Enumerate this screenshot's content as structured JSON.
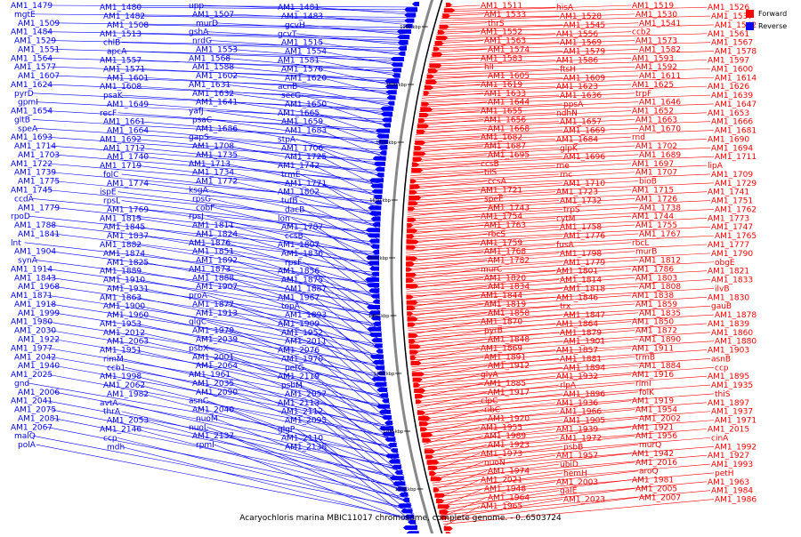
{
  "legend": {
    "forward": "Forward",
    "reverse": "Reverse",
    "forward_color": "#ff0000",
    "reverse_color": "#0000ff"
  },
  "caption": "Acaryochloris marina MBIC11017 chromosome, complete genome. - 0..6503724",
  "scale_ticks": [
    "1900 kbp",
    "1800 kbp",
    "1700 kbp",
    "1600 kbp",
    "1500 kbp",
    "1400 kbp",
    "1300 kbp",
    "1200 kbp",
    "1100 kbp"
  ],
  "reverse_labels": [
    "AM1_1479",
    "AM1_1480",
    "upp",
    "AM1_1481",
    "mgtE",
    "AM1_1482",
    "AM1_1507",
    "AM1_1483",
    "AM1_1509",
    "AM1_1508",
    "murD",
    "gcvH",
    "AM1_1484",
    "AM1_1513",
    "gshA",
    "gcvT",
    "AM1_1529",
    "chlB",
    "nrdG",
    "AM1_1515",
    "AM1_1551",
    "apcA",
    "AM1_1553",
    "AM1_1554",
    "AM1_1564",
    "AM1_1557",
    "AM1_1568",
    "AM1_1581",
    "AM1_1577",
    "AM1_1571",
    "AM1_1588",
    "AM1_1576",
    "AM1_1607",
    "AM1_1601",
    "AM1_1602",
    "AM1_1620",
    "AM1_1624",
    "AM1_1608",
    "AM1_1631",
    "acnB",
    "pyrD",
    "psaK",
    "AM1_1632",
    "secG",
    "gpmI",
    "AM1_1649",
    "AM1_1641",
    "AM1_1650",
    "AM1_1654",
    "recF",
    "yafJ",
    "AM1_1665",
    "gltB",
    "AM1_1661",
    "psaC",
    "AM1_1659",
    "speA",
    "AM1_1664",
    "AM1_1686",
    "AM1_1683",
    "AM1_1693",
    "AM1_1692",
    "gapS",
    "stpA",
    "AM1_1714",
    "AM1_1712",
    "AM1_1708",
    "AM1_1706",
    "AM1_1703",
    "AM1_1740",
    "AM1_1735",
    "AM1_1725",
    "AM1_1722",
    "AM1_1719",
    "AM1_1713",
    "AM1_1742",
    "AM1_1739",
    "folC",
    "AM1_1734",
    "trmE",
    "AM1_1775",
    "AM1_1774",
    "AM1_1772",
    "AM1_1771",
    "AM1_1745",
    "ispE",
    "ksgA",
    "AM1_1802",
    "ccdA",
    "rpsL",
    "rpsG",
    "tufB",
    "AM1_1779",
    "AM1_1769",
    "cobF",
    "dacB",
    "rpoD",
    "AM1_1815",
    "rpsJ",
    "lon",
    "AM1_1788",
    "AM1_1845",
    "AM1_1811",
    "AM1_1787",
    "AM1_1841",
    "AM1_1837",
    "AM1_1824",
    "ccsB",
    "lnt",
    "AM1_1882",
    "AM1_1876",
    "AM1_1807",
    "AM1_1904",
    "AM1_1874",
    "AM1_1851",
    "AM1_1836",
    "synA",
    "AM1_1825",
    "AM1_1892",
    "rpsF",
    "AM1_1914",
    "AM1_1889",
    "AM1_1873",
    "AM1_1856",
    "AM1_1843",
    "AM1_1910",
    "AM1_1888",
    "AM1_1875",
    "AM1_1968",
    "AM1_1931",
    "AM1_1907",
    "AM1_1887",
    "AM1_1871",
    "AM1_1863",
    "proA",
    "AM1_1967",
    "AM1_1918",
    "AM1_1900",
    "AM1_1877",
    "topA",
    "AM1_1999",
    "AM1_1960",
    "AM1_1913",
    "AM1_1893",
    "AM1_1980",
    "AM1_1953",
    "glgC",
    "AM1_1909",
    "AM1_2030",
    "AM1_2012",
    "AM1_1979",
    "AM1_1952",
    "AM1_1922",
    "AM1_2063",
    "AM1_2039",
    "AM1_2011",
    "AM1_1977",
    "AM1_1951",
    "psbX",
    "AM1_2076",
    "AM1_2042",
    "rimM",
    "AM1_2001",
    "AM1_1970",
    "AM1_1940",
    "ccb1",
    "AM1_2064",
    "petG",
    "AM1_2025",
    "AM1_1998",
    "AM1_1961",
    "AM1_2119",
    "gnd",
    "AM1_2062",
    "AM1_2035",
    "psbM",
    "AM1_2006",
    "AM1_1982",
    "AM1_2090",
    "AM1_2057",
    "AM1_2041",
    "avtA",
    "asnC",
    "AM1_2113",
    "AM1_2075",
    "thrA",
    "AM1_2040",
    "AM1_2112",
    "AM1_2081",
    "AM1_2053",
    "nuoM",
    "AM1_2095",
    "AM1_2067",
    "AM1_2146",
    "nuoL",
    "glgP",
    "malQ",
    "ccp",
    "AM1_2137",
    "AM1_2110",
    "polA",
    "mdh",
    "rpmI",
    "AM1_2138"
  ],
  "forward_labels": [
    "AM1_1511",
    "hisA",
    "AM1_1519",
    "AM1_1526",
    "AM1_1533",
    "AM1_1528",
    "AM1_1530",
    "AM1_1537",
    "thrS",
    "AM1_1545",
    "AM1_1541",
    "AM1_1542",
    "AM1_1552",
    "AM1_1556",
    "ccb2",
    "AM1_1561",
    "AM1_1563",
    "AM1_1569",
    "AM1_1573",
    "AM1_1567",
    "AM1_1574",
    "AM1_1579",
    "AM1_1582",
    "AM1_1578",
    "AM1_1583",
    "AM1_1586",
    "AM1_1593",
    "AM1_1597",
    "hlI",
    "ftsH",
    "AM1_1592",
    "AM1_1600",
    "AM1_1605",
    "AM1_1609",
    "AM1_1611",
    "AM1_1614",
    "AM1_1619",
    "AM1_1623",
    "AM1_1625",
    "AM1_1626",
    "AM1_1633",
    "AM1_1636",
    "trpF",
    "AM1_1639",
    "AM1_1644",
    "ppsA",
    "AM1_1646",
    "AM1_1647",
    "AM1_1655",
    "ndhN",
    "AM1_1652",
    "AM1_1653",
    "AM1_1656",
    "AM1_1657",
    "AM1_1663",
    "AM1_1666",
    "AM1_1668",
    "AM1_1669",
    "AM1_1670",
    "AM1_1681",
    "AM1_1682",
    "AM1_1684",
    "rnd",
    "AM1_1690",
    "AM1_1687",
    "glpK",
    "AM1_1702",
    "AM1_1694",
    "AM1_1695",
    "AM1_1696",
    "AM1_1689",
    "AM1_1711",
    "ccsB",
    "rne",
    "AM1_1697",
    "lipA",
    "tilS",
    "rnc",
    "AM1_1707",
    "AM1_1709",
    "ccsA",
    "AM1_1710",
    "bioB",
    "AM1_1729",
    "AM1_1721",
    "AM1_1723",
    "AM1_1715",
    "AM1_1741",
    "speE",
    "AM1_1732",
    "AM1_1726",
    "AM1_1751",
    "AM1_1743",
    "trpS",
    "AM1_1738",
    "AM1_1762",
    "AM1_1754",
    "cytM",
    "AM1_1744",
    "AM1_1773",
    "AM1_1763",
    "AM1_1758",
    "AM1_1755",
    "AM1_1747",
    "rbcS",
    "AM1_1776",
    "AM1_1767",
    "AM1_1765",
    "AM1_1759",
    "fusA",
    "rbcL",
    "AM1_1777",
    "AM1_1768",
    "AM1_1798",
    "murB",
    "AM1_1790",
    "AM1_1782",
    "AM1_1779",
    "AM1_1812",
    "obgE",
    "murC",
    "AM1_1801",
    "AM1_1786",
    "AM1_1821",
    "AM1_1820",
    "AM1_1814",
    "AM1_1803",
    "AM1_1833",
    "AM1_1834",
    "AM1_1818",
    "AM1_1808",
    "ilvB",
    "AM1_1844",
    "AM1_1846",
    "AM1_1838",
    "AM1_1830",
    "AM1_1819",
    "trx",
    "AM1_1859",
    "gauB",
    "AM1_1858",
    "AM1_1847",
    "AM1_1835",
    "AM1_1878",
    "AM1_1870",
    "AM1_1864",
    "AM1_1850",
    "AM1_1839",
    "pyrB",
    "AM1_1879",
    "AM1_1872",
    "AM1_1860",
    "AM1_1848",
    "AM1_1901",
    "AM1_1890",
    "AM1_1880",
    "AM1_1869",
    "AM1_1857",
    "AM1_1911",
    "AM1_1903",
    "AM1_1891",
    "AM1_1881",
    "trmB",
    "asnB",
    "AM1_1912",
    "AM1_1894",
    "AM1_1884",
    "ccp",
    "glyA",
    "AM1_1932",
    "AM1_1916",
    "AM1_1895",
    "AM1_1885",
    "rlpA",
    "rimI",
    "AM1_1935",
    "AM1_1917",
    "AM1_1896",
    "folK",
    "thiS",
    "clpC",
    "AM1_1936",
    "AM1_1919",
    "AM1_1897",
    "ribC",
    "AM1_1966",
    "AM1_1954",
    "AM1_1937",
    "AM1_1920",
    "AM1_1905",
    "AM1_2002",
    "AM1_1971",
    "AM1_1955",
    "AM1_1939",
    "AM1_1921",
    "AM1_2015",
    "AM1_1989",
    "AM1_1972",
    "AM1_1956",
    "cinA",
    "AM1_1923",
    "psbB",
    "murQ",
    "AM1_1992",
    "AM1_1973",
    "AM1_1957",
    "AM1_1942",
    "AM1_1927",
    "nuoN",
    "ubiD",
    "AM1_2016",
    "AM1_1993",
    "AM1_1974",
    "hemH",
    "aroQ",
    "petH",
    "AM1_2021",
    "AM1_2003",
    "AM1_1981",
    "AM1_1963",
    "AM1_1948",
    "galE",
    "AM1_2005",
    "AM1_1984",
    "AM1_1964",
    "AM1_2023",
    "AM1_2007",
    "AM1_1986",
    "AM1_1965"
  ]
}
